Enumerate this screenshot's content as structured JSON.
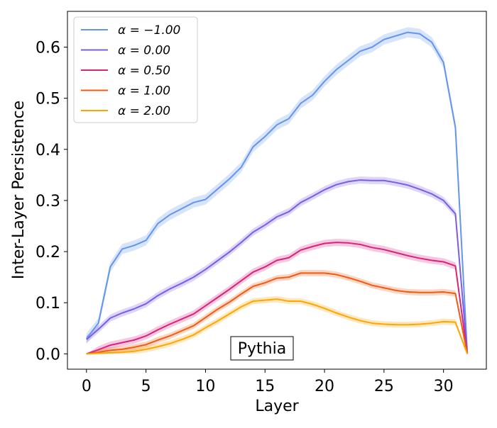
{
  "chart_data": {
    "type": "line",
    "title": "",
    "xlabel": "Layer",
    "ylabel": "Inter-Layer Persistence",
    "xlim": [
      -1.6,
      33.6
    ],
    "ylim": [
      -0.03,
      0.67
    ],
    "xticks": [
      0,
      5,
      10,
      15,
      20,
      25,
      30
    ],
    "yticks": [
      0.0,
      0.1,
      0.2,
      0.3,
      0.4,
      0.5,
      0.6
    ],
    "ytick_labels": [
      "0.0",
      "0.1",
      "0.2",
      "0.3",
      "0.4",
      "0.5",
      "0.6"
    ],
    "grid": false,
    "legend_position": "top-left",
    "annotation": "Pythia",
    "x": [
      0,
      1,
      2,
      3,
      4,
      5,
      6,
      7,
      8,
      9,
      10,
      11,
      12,
      13,
      14,
      15,
      16,
      17,
      18,
      19,
      20,
      21,
      22,
      23,
      24,
      25,
      26,
      27,
      28,
      29,
      30,
      31,
      32
    ],
    "series": [
      {
        "name": "α = −1.00",
        "color": "#6495ED",
        "values": [
          0.03,
          0.06,
          0.17,
          0.205,
          0.212,
          0.222,
          0.255,
          0.272,
          0.284,
          0.296,
          0.302,
          0.322,
          0.342,
          0.365,
          0.405,
          0.425,
          0.448,
          0.46,
          0.49,
          0.506,
          0.533,
          0.556,
          0.574,
          0.592,
          0.6,
          0.615,
          0.622,
          0.629,
          0.626,
          0.61,
          0.57,
          0.443,
          0.0
        ],
        "band": 0.01
      },
      {
        "name": "α = 0.00",
        "color": "#7B5CE6",
        "values": [
          0.028,
          0.048,
          0.07,
          0.08,
          0.088,
          0.098,
          0.114,
          0.127,
          0.138,
          0.15,
          0.165,
          0.182,
          0.199,
          0.218,
          0.238,
          0.252,
          0.268,
          0.278,
          0.296,
          0.308,
          0.321,
          0.331,
          0.337,
          0.34,
          0.339,
          0.339,
          0.335,
          0.33,
          0.322,
          0.313,
          0.3,
          0.274,
          0.0
        ],
        "band": 0.007
      },
      {
        "name": "α = 0.50",
        "color": "#D6247E",
        "values": [
          0.0,
          0.008,
          0.017,
          0.022,
          0.027,
          0.035,
          0.047,
          0.058,
          0.068,
          0.078,
          0.094,
          0.11,
          0.126,
          0.143,
          0.16,
          0.17,
          0.183,
          0.188,
          0.203,
          0.21,
          0.216,
          0.218,
          0.217,
          0.214,
          0.208,
          0.204,
          0.198,
          0.192,
          0.187,
          0.183,
          0.18,
          0.172,
          0.0
        ],
        "band": 0.007
      },
      {
        "name": "α = 1.00",
        "color": "#F25A12",
        "values": [
          0.0,
          0.003,
          0.007,
          0.009,
          0.013,
          0.018,
          0.027,
          0.035,
          0.045,
          0.055,
          0.071,
          0.087,
          0.101,
          0.117,
          0.132,
          0.139,
          0.148,
          0.15,
          0.158,
          0.158,
          0.158,
          0.155,
          0.149,
          0.142,
          0.134,
          0.129,
          0.124,
          0.121,
          0.12,
          0.12,
          0.121,
          0.118,
          0.0
        ],
        "band": 0.006
      },
      {
        "name": "α = 2.00",
        "color": "#FFA500",
        "values": [
          0.0,
          0.001,
          0.002,
          0.003,
          0.005,
          0.009,
          0.014,
          0.02,
          0.028,
          0.037,
          0.051,
          0.064,
          0.078,
          0.092,
          0.103,
          0.105,
          0.107,
          0.103,
          0.103,
          0.097,
          0.089,
          0.08,
          0.072,
          0.065,
          0.06,
          0.058,
          0.057,
          0.057,
          0.058,
          0.06,
          0.063,
          0.062,
          0.0
        ],
        "band": 0.006
      }
    ]
  }
}
